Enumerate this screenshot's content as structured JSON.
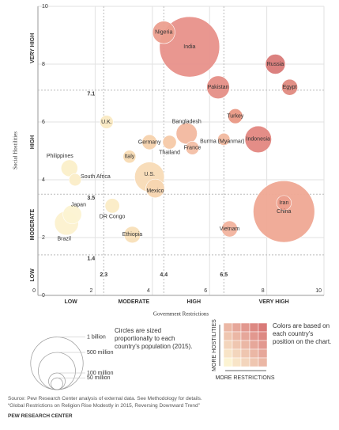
{
  "chart_data": {
    "type": "bubble",
    "x_title": "Government Restrictions",
    "y_title": "Social Hostilities",
    "xlim": [
      0,
      10
    ],
    "ylim": [
      0,
      10
    ],
    "xticks": [
      0,
      2,
      4,
      6,
      8,
      10
    ],
    "yticks": [
      0,
      2,
      4,
      6,
      8,
      10
    ],
    "x_thresholds": [
      2.3,
      4.4,
      6.5
    ],
    "y_thresholds": [
      1.4,
      3.5,
      7.1
    ],
    "x_bands": [
      "LOW",
      "MODERATE",
      "HIGH",
      "VERY HIGH"
    ],
    "y_bands": [
      "LOW",
      "MODERATE",
      "HIGH",
      "VERY HIGH"
    ],
    "labels": [
      "India",
      "China",
      "U.S.",
      "Indonesia",
      "Brazil",
      "Pakistan",
      "Nigeria",
      "Bangladesh",
      "Russia",
      "Japan",
      "Mexico",
      "Philippines",
      "Ethiopia",
      "Egypt",
      "Vietnam",
      "Germany",
      "Iran",
      "Turkey",
      "Thailand",
      "DR Congo",
      "U.K.",
      "France",
      "Italy",
      "South Africa",
      "Burma (Myanmar)"
    ],
    "x": [
      5.3,
      8.6,
      3.9,
      7.7,
      1.0,
      6.3,
      4.4,
      5.2,
      8.3,
      1.2,
      4.1,
      1.1,
      3.3,
      8.8,
      6.7,
      3.9,
      8.6,
      6.9,
      4.6,
      2.6,
      2.4,
      5.4,
      3.2,
      1.3,
      6.5
    ],
    "y": [
      8.6,
      2.9,
      4.1,
      5.4,
      2.5,
      7.2,
      9.1,
      5.6,
      8.0,
      2.8,
      3.7,
      4.4,
      2.1,
      7.2,
      2.3,
      5.3,
      3.2,
      6.2,
      5.3,
      3.1,
      6.0,
      5.1,
      4.8,
      4.0,
      5.4
    ],
    "size": [
      1311,
      1371,
      321,
      258,
      208,
      189,
      182,
      161,
      143,
      127,
      127,
      101,
      99,
      92,
      92,
      81,
      79,
      79,
      68,
      77,
      65,
      64,
      60,
      55,
      54
    ],
    "colors": [
      "#e8918a",
      "#efa894",
      "#f8dbb6",
      "#e38781",
      "#fcf1cf",
      "#e58e86",
      "#ec9f8f",
      "#f2b89f",
      "#d97a78",
      "#fcf3d2",
      "#f7d5b0",
      "#fbefc9",
      "#f8dfb8",
      "#e08a80",
      "#f2b39e",
      "#f6d2ad",
      "#ec9f8d",
      "#e99884",
      "#f5c9a8",
      "#fbecc6",
      "#faeac3",
      "#f3bfa5",
      "#f8dbb3",
      "#fbedc8",
      "#f1b9a0"
    ],
    "size_legend": [
      {
        "value": 1000,
        "label": "1 billion"
      },
      {
        "value": 500,
        "label": "500 million"
      },
      {
        "value": 100,
        "label": "100 million"
      },
      {
        "value": 50,
        "label": "50 million"
      }
    ],
    "size_note": "Circles are sized proportionally to each country's population (2015).",
    "color_note": "Colors are based on each country's position on the chart.",
    "color_y_label": "MORE HOSTILITIES",
    "color_x_label": "MORE RESTRICTIONS"
  },
  "footer": {
    "source": "Source: Pew Research Center analysis of external data. See Methodology for details.",
    "report": "“Global Restrictions on Religion Rise Modestly in 2015, Reversing Downward Trend”",
    "org": "PEW RESEARCH CENTER"
  }
}
